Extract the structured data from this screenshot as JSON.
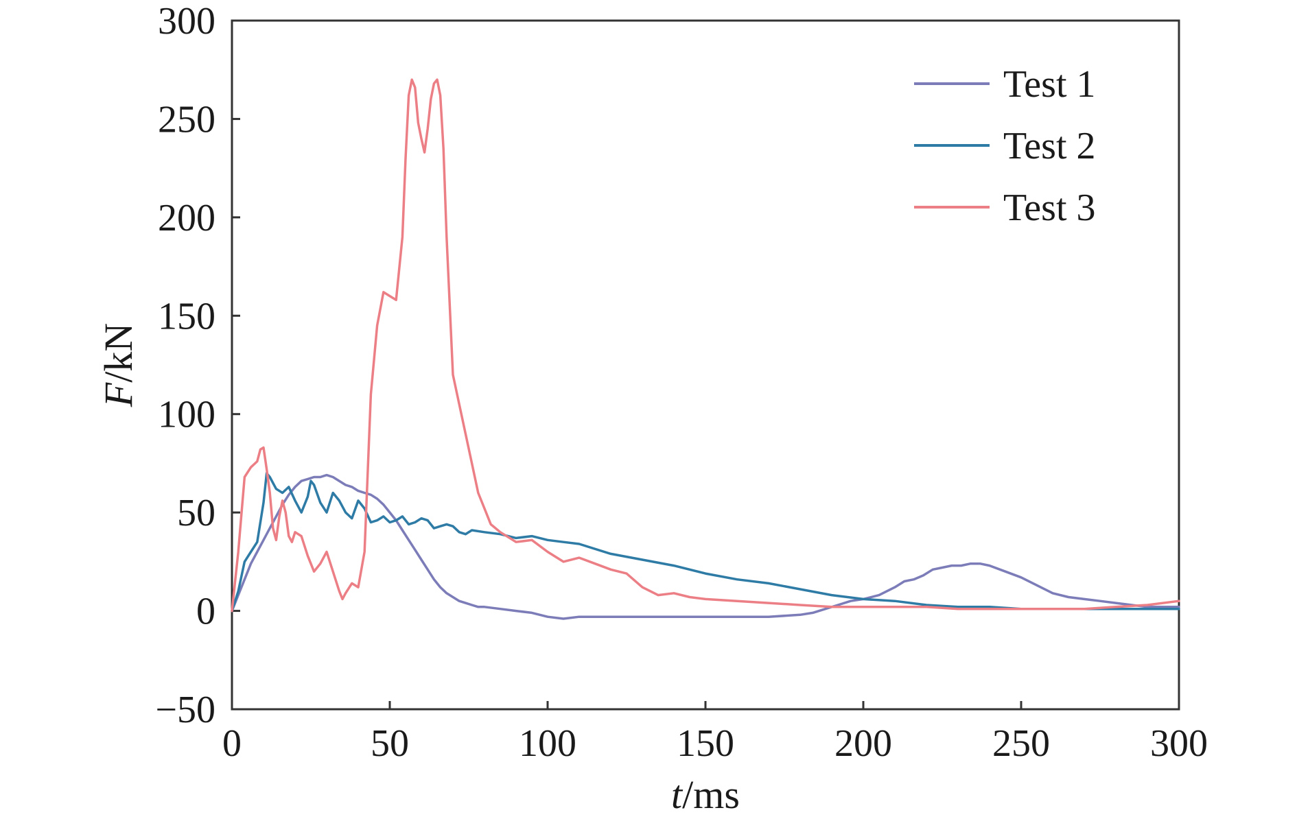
{
  "chart_data": {
    "type": "line",
    "title": "",
    "xlabel_italic": "t",
    "xlabel_rest": "/ms",
    "ylabel_italic": "F",
    "ylabel_rest": "/kN",
    "xlim": [
      0,
      300
    ],
    "ylim": [
      -50,
      300
    ],
    "xticks": [
      0,
      50,
      100,
      150,
      200,
      250,
      300
    ],
    "yticks": [
      -50,
      0,
      50,
      100,
      150,
      200,
      250,
      300
    ],
    "xtick_labels": [
      "0",
      "50",
      "100",
      "150",
      "200",
      "250",
      "300"
    ],
    "ytick_labels": [
      "−50",
      "0",
      "50",
      "100",
      "150",
      "200",
      "250",
      "300"
    ],
    "grid": false,
    "legend_position": "top-right",
    "series": [
      {
        "name": "Test 1",
        "color": "#7b7cb8",
        "x": [
          0,
          2,
          4,
          6,
          8,
          10,
          12,
          14,
          16,
          18,
          20,
          22,
          24,
          26,
          28,
          30,
          32,
          34,
          36,
          38,
          40,
          42,
          44,
          46,
          48,
          50,
          52,
          54,
          56,
          58,
          60,
          62,
          64,
          66,
          68,
          70,
          72,
          74,
          76,
          78,
          80,
          85,
          90,
          95,
          100,
          105,
          110,
          120,
          130,
          140,
          150,
          160,
          170,
          180,
          184,
          188,
          192,
          196,
          200,
          205,
          210,
          213,
          216,
          219,
          222,
          225,
          228,
          231,
          234,
          237,
          240,
          245,
          250,
          255,
          260,
          265,
          270,
          275,
          280,
          285,
          290,
          295,
          300
        ],
        "y": [
          0,
          8,
          16,
          24,
          30,
          36,
          42,
          48,
          54,
          59,
          63,
          66,
          67,
          68,
          68,
          69,
          68,
          66,
          64,
          63,
          61,
          60,
          59,
          57,
          54,
          50,
          46,
          41,
          36,
          31,
          26,
          21,
          16,
          12,
          9,
          7,
          5,
          4,
          3,
          2,
          2,
          1,
          0,
          -1,
          -3,
          -4,
          -3,
          -3,
          -3,
          -3,
          -3,
          -3,
          -3,
          -2,
          -1,
          1,
          3,
          5,
          6,
          8,
          12,
          15,
          16,
          18,
          21,
          22,
          23,
          23,
          24,
          24,
          23,
          20,
          17,
          13,
          9,
          7,
          6,
          5,
          4,
          3,
          2,
          2,
          2
        ]
      },
      {
        "name": "Test 2",
        "color": "#2e7ba6",
        "x": [
          0,
          2,
          4,
          6,
          8,
          10,
          11,
          12,
          14,
          16,
          18,
          20,
          22,
          24,
          25,
          26,
          28,
          30,
          32,
          34,
          36,
          38,
          40,
          42,
          44,
          46,
          48,
          50,
          52,
          54,
          56,
          58,
          60,
          62,
          64,
          66,
          68,
          70,
          72,
          74,
          76,
          80,
          85,
          90,
          95,
          100,
          105,
          110,
          120,
          130,
          140,
          150,
          160,
          170,
          180,
          190,
          200,
          210,
          220,
          230,
          240,
          250,
          260,
          270,
          280,
          290,
          300
        ],
        "y": [
          0,
          10,
          25,
          30,
          35,
          55,
          70,
          68,
          62,
          60,
          63,
          56,
          50,
          58,
          66,
          64,
          55,
          50,
          60,
          56,
          50,
          47,
          56,
          52,
          45,
          46,
          48,
          45,
          46,
          48,
          44,
          45,
          47,
          46,
          42,
          43,
          44,
          43,
          40,
          39,
          41,
          40,
          39,
          37,
          38,
          36,
          35,
          34,
          29,
          26,
          23,
          19,
          16,
          14,
          11,
          8,
          6,
          5,
          3,
          2,
          2,
          1,
          1,
          1,
          1,
          1,
          1
        ]
      },
      {
        "name": "Test 3",
        "color": "#ec7f86",
        "x": [
          0,
          2,
          4,
          6,
          8,
          9,
          10,
          11,
          12,
          13,
          14,
          15,
          16,
          17,
          18,
          19,
          20,
          22,
          24,
          26,
          28,
          30,
          32,
          34,
          35,
          36,
          38,
          40,
          42,
          44,
          46,
          48,
          50,
          52,
          54,
          55,
          56,
          57,
          58,
          59,
          60,
          61,
          62,
          63,
          64,
          65,
          66,
          67,
          68,
          70,
          72,
          74,
          76,
          78,
          80,
          82,
          85,
          88,
          90,
          95,
          100,
          105,
          110,
          115,
          120,
          125,
          130,
          135,
          140,
          145,
          150,
          160,
          170,
          180,
          190,
          200,
          210,
          220,
          230,
          240,
          250,
          260,
          270,
          280,
          290,
          300
        ],
        "y": [
          0,
          30,
          68,
          73,
          76,
          82,
          83,
          72,
          60,
          42,
          36,
          48,
          56,
          50,
          38,
          35,
          40,
          38,
          28,
          20,
          24,
          30,
          20,
          10,
          6,
          9,
          14,
          12,
          30,
          110,
          145,
          162,
          160,
          158,
          190,
          230,
          262,
          270,
          266,
          248,
          240,
          233,
          245,
          260,
          268,
          270,
          262,
          235,
          190,
          120,
          105,
          90,
          75,
          60,
          52,
          44,
          40,
          37,
          35,
          36,
          30,
          25,
          27,
          24,
          21,
          19,
          12,
          8,
          9,
          7,
          6,
          5,
          4,
          3,
          2,
          2,
          2,
          2,
          1,
          1,
          1,
          1,
          1,
          2,
          3,
          5
        ]
      }
    ]
  }
}
